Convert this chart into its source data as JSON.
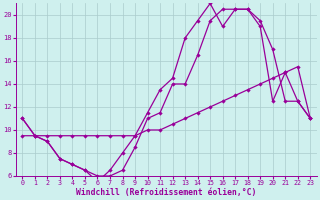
{
  "xlabel": "Windchill (Refroidissement éolien,°C)",
  "bg_color": "#cff0ee",
  "line_color": "#990099",
  "grid_color": "#aacccc",
  "xlim": [
    -0.5,
    23.5
  ],
  "ylim": [
    6,
    21
  ],
  "yticks": [
    6,
    8,
    10,
    12,
    14,
    16,
    18,
    20
  ],
  "xticks": [
    0,
    1,
    2,
    3,
    4,
    5,
    6,
    7,
    8,
    9,
    10,
    11,
    12,
    13,
    14,
    15,
    16,
    17,
    18,
    19,
    20,
    21,
    22,
    23
  ],
  "line1_x": [
    0,
    1,
    2,
    3,
    4,
    5,
    6,
    7,
    8,
    9,
    10,
    11,
    12,
    13,
    14,
    15,
    16,
    17,
    18,
    19,
    20,
    21,
    22,
    23
  ],
  "line1_y": [
    11.0,
    9.5,
    9.0,
    7.5,
    7.0,
    6.5,
    5.5,
    6.5,
    8.0,
    9.5,
    11.5,
    13.5,
    14.5,
    18.0,
    19.5,
    21.0,
    19.0,
    20.5,
    20.5,
    19.5,
    17.0,
    12.5,
    12.5,
    11.0
  ],
  "line2_x": [
    0,
    1,
    2,
    3,
    4,
    5,
    6,
    7,
    8,
    9,
    10,
    11,
    12,
    13,
    14,
    15,
    16,
    17,
    18,
    19,
    20,
    21,
    22,
    23
  ],
  "line2_y": [
    9.5,
    9.5,
    9.5,
    9.5,
    9.5,
    9.5,
    9.5,
    9.5,
    9.5,
    9.5,
    10.0,
    10.0,
    10.5,
    11.0,
    11.5,
    12.0,
    12.5,
    13.0,
    13.5,
    14.0,
    14.5,
    15.0,
    15.5,
    11.0
  ],
  "line3_x": [
    0,
    1,
    2,
    3,
    4,
    5,
    6,
    7,
    8,
    9,
    10,
    11,
    12,
    13,
    14,
    15,
    16,
    17,
    18,
    19,
    20,
    21,
    22,
    23
  ],
  "line3_y": [
    11.0,
    9.5,
    9.0,
    7.5,
    7.0,
    6.5,
    6.0,
    6.0,
    6.5,
    8.5,
    11.0,
    11.5,
    14.0,
    14.0,
    16.5,
    19.5,
    20.5,
    20.5,
    20.5,
    19.0,
    12.5,
    15.0,
    12.5,
    11.0
  ]
}
